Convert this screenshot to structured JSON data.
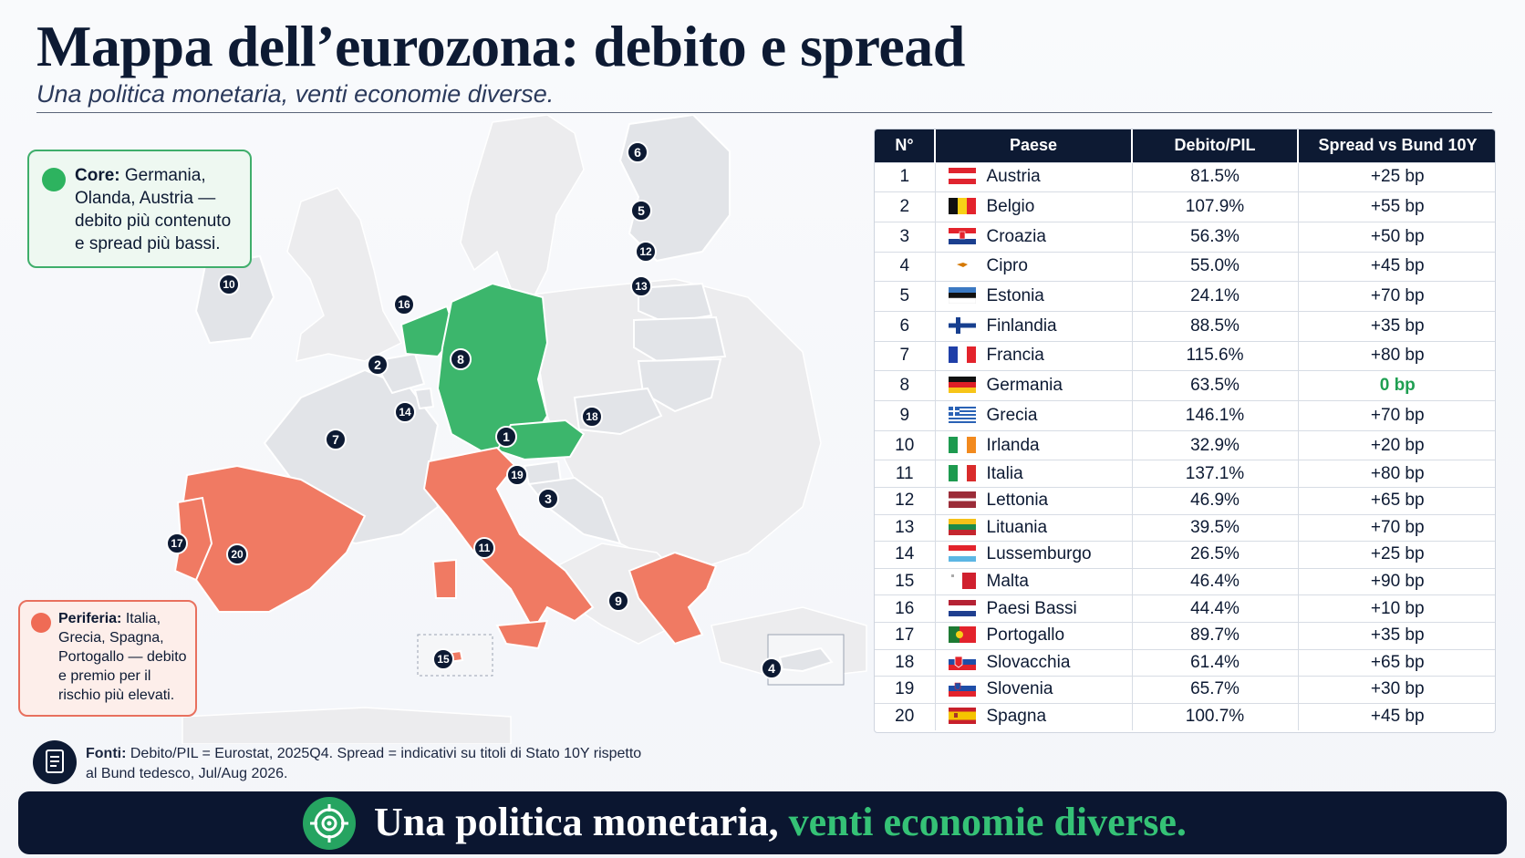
{
  "header": {
    "title": "Mappa dell’eurozona: debito e spread",
    "subtitle": "Una politica monetaria, venti economie diverse."
  },
  "legend": {
    "core": {
      "label": "Core:",
      "text": "Germania, Olanda, Austria — debito più contenuto e spread più bassi.",
      "color": "#2db35f"
    },
    "periphery": {
      "label": "Periferia:",
      "text": "Italia, Grecia, Spagna, Portogallo — debito e premio per il rischio più elevati.",
      "color": "#ef6b55"
    }
  },
  "map_markers": [
    "1",
    "2",
    "3",
    "4",
    "5",
    "6",
    "7",
    "8",
    "9",
    "10",
    "11",
    "12",
    "13",
    "14",
    "15",
    "16",
    "17",
    "18",
    "19",
    "20"
  ],
  "table": {
    "headers": [
      "N°",
      "Paese",
      "Debito/PIL",
      "Spread vs Bund 10Y"
    ],
    "rows": [
      {
        "n": "1",
        "country": "Austria",
        "debt": "81.5%",
        "spread": "+25 bp",
        "flag": "austria"
      },
      {
        "n": "2",
        "country": "Belgio",
        "debt": "107.9%",
        "spread": "+55 bp",
        "flag": "belgium"
      },
      {
        "n": "3",
        "country": "Croazia",
        "debt": "56.3%",
        "spread": "+50 bp",
        "flag": "croatia"
      },
      {
        "n": "4",
        "country": "Cipro",
        "debt": "55.0%",
        "spread": "+45 bp",
        "flag": "cyprus"
      },
      {
        "n": "5",
        "country": "Estonia",
        "debt": "24.1%",
        "spread": "+70 bp",
        "flag": "estonia"
      },
      {
        "n": "6",
        "country": "Finlandia",
        "debt": "88.5%",
        "spread": "+35 bp",
        "flag": "finland"
      },
      {
        "n": "7",
        "country": "Francia",
        "debt": "115.6%",
        "spread": "+80 bp",
        "flag": "france"
      },
      {
        "n": "8",
        "country": "Germania",
        "debt": "63.5%",
        "spread": "0 bp",
        "flag": "germany"
      },
      {
        "n": "9",
        "country": "Grecia",
        "debt": "146.1%",
        "spread": "+70 bp",
        "flag": "greece"
      },
      {
        "n": "10",
        "country": "Irlanda",
        "debt": "32.9%",
        "spread": "+20 bp",
        "flag": "ireland"
      },
      {
        "n": "11",
        "country": "Italia",
        "debt": "137.1%",
        "spread": "+80 bp",
        "flag": "italy"
      },
      {
        "n": "12",
        "country": "Lettonia",
        "debt": "46.9%",
        "spread": "+65 bp",
        "flag": "latvia"
      },
      {
        "n": "13",
        "country": "Lituania",
        "debt": "39.5%",
        "spread": "+70 bp",
        "flag": "lithuania"
      },
      {
        "n": "14",
        "country": "Lussemburgo",
        "debt": "26.5%",
        "spread": "+25 bp",
        "flag": "luxembourg"
      },
      {
        "n": "15",
        "country": "Malta",
        "debt": "46.4%",
        "spread": "+90 bp",
        "flag": "malta"
      },
      {
        "n": "16",
        "country": "Paesi Bassi",
        "debt": "44.4%",
        "spread": "+10 bp",
        "flag": "netherlands"
      },
      {
        "n": "17",
        "country": "Portogallo",
        "debt": "89.7%",
        "spread": "+35 bp",
        "flag": "portugal"
      },
      {
        "n": "18",
        "country": "Slovacchia",
        "debt": "61.4%",
        "spread": "+65 bp",
        "flag": "slovakia"
      },
      {
        "n": "19",
        "country": "Slovenia",
        "debt": "65.7%",
        "spread": "+30 bp",
        "flag": "slovenia"
      },
      {
        "n": "20",
        "country": "Spagna",
        "debt": "100.7%",
        "spread": "+45 bp",
        "flag": "spain"
      }
    ]
  },
  "sources": {
    "label": "Fonti:",
    "text": "Debito/PIL = Eurostat, 2025Q4. Spread = indicativi su titoli di Stato 10Y rispetto al Bund tedesco, Jul/Aug 2026."
  },
  "banner": {
    "text_main": "Una politica monetaria, ",
    "text_highlight": "venti economie diverse.",
    "highlight_color": "#35c276"
  },
  "colors": {
    "core": "#3cb66c",
    "periphery": "#f07a63",
    "other_eurozone": "#e2e4e8",
    "navy": "#0d1a33"
  }
}
